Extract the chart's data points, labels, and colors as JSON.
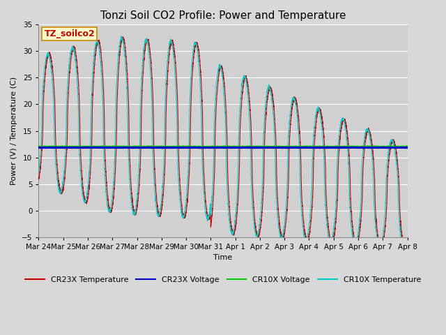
{
  "title": "Tonzi Soil CO2 Profile: Power and Temperature",
  "xlabel": "Time",
  "ylabel": "Power (V) / Temperature (C)",
  "ylim": [
    -5,
    35
  ],
  "yticks": [
    -5,
    0,
    5,
    10,
    15,
    20,
    25,
    30,
    35
  ],
  "background_color": "#d8d8d8",
  "plot_bg_color": "#d0d0d0",
  "grid_color": "#ffffff",
  "annotation_text": "TZ_soilco2",
  "annotation_bg": "#ffffcc",
  "annotation_border": "#cc8800",
  "legend_entries": [
    "CR23X Temperature",
    "CR23X Voltage",
    "CR10X Voltage",
    "CR10X Temperature"
  ],
  "line_colors": {
    "cr23x_temp": "#cc0000",
    "cr23x_volt": "#0000cc",
    "cr10x_volt": "#00cc00",
    "cr10x_temp": "#00cccc"
  },
  "cr23x_voltage": 11.85,
  "cr10x_voltage": 12.0,
  "num_points": 5000,
  "x_tick_labels": [
    "Mar 24",
    "Mar 25",
    "Mar 26",
    "Mar 27",
    "Mar 28",
    "Mar 29",
    "Mar 30",
    "Mar 31",
    "Apr 1",
    "Apr 2",
    "Apr 3",
    "Apr 4",
    "Apr 5",
    "Apr 6",
    "Apr 7",
    "Apr 8"
  ],
  "title_fontsize": 11,
  "axis_label_fontsize": 8,
  "tick_fontsize": 7.5,
  "legend_fontsize": 8,
  "figwidth": 6.4,
  "figheight": 4.8,
  "dpi": 100
}
